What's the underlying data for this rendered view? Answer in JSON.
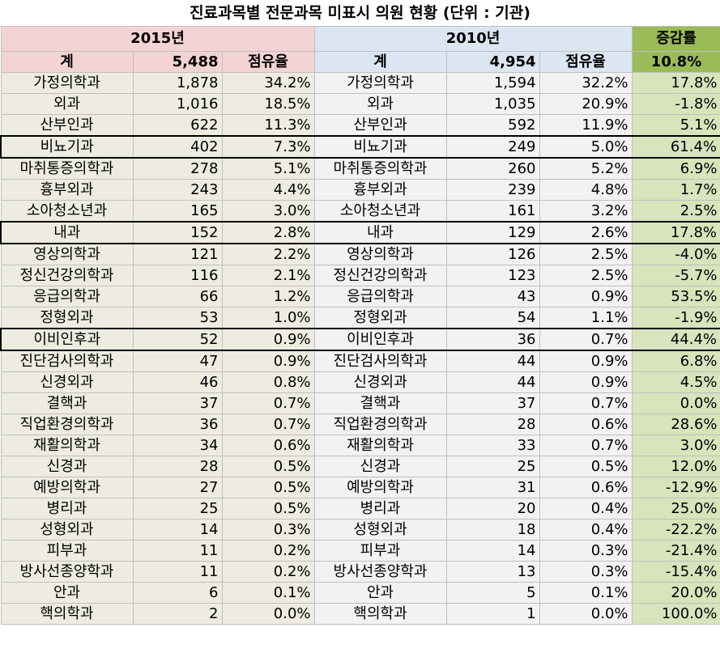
{
  "title": "진료과목별 전문과목 미표시 의원 현황 (단위 : 기관)",
  "header": {
    "year_2015": "2015년",
    "year_2010": "2010년",
    "change_label": "증감률",
    "total_label": "계",
    "share_label": "점유율",
    "total_2015": "5,488",
    "total_2010": "4,954",
    "total_change": "10.8%"
  },
  "colors": {
    "pink_header": "#f4d3d4",
    "blue_header": "#dce6f2",
    "green_header": "#9bbb59",
    "beige_body": "#eeece1",
    "gray_body": "#f2f2f2",
    "green_body": "#d7e4bc"
  },
  "rows": [
    {
      "name_2015": "가정의학과",
      "count_2015": "1,878",
      "share_2015": "34.2%",
      "name_2010": "가정의학과",
      "count_2010": "1,594",
      "share_2010": "32.2%",
      "change": "17.8%",
      "highlight": false
    },
    {
      "name_2015": "외과",
      "count_2015": "1,016",
      "share_2015": "18.5%",
      "name_2010": "외과",
      "count_2010": "1,035",
      "share_2010": "20.9%",
      "change": "-1.8%",
      "highlight": false
    },
    {
      "name_2015": "산부인과",
      "count_2015": "622",
      "share_2015": "11.3%",
      "name_2010": "산부인과",
      "count_2010": "592",
      "share_2010": "11.9%",
      "change": "5.1%",
      "highlight": false
    },
    {
      "name_2015": "비뇨기과",
      "count_2015": "402",
      "share_2015": "7.3%",
      "name_2010": "비뇨기과",
      "count_2010": "249",
      "share_2010": "5.0%",
      "change": "61.4%",
      "highlight": true
    },
    {
      "name_2015": "마취통증의학과",
      "count_2015": "278",
      "share_2015": "5.1%",
      "name_2010": "마취통증의학과",
      "count_2010": "260",
      "share_2010": "5.2%",
      "change": "6.9%",
      "highlight": false
    },
    {
      "name_2015": "흉부외과",
      "count_2015": "243",
      "share_2015": "4.4%",
      "name_2010": "흉부외과",
      "count_2010": "239",
      "share_2010": "4.8%",
      "change": "1.7%",
      "highlight": false
    },
    {
      "name_2015": "소아청소년과",
      "count_2015": "165",
      "share_2015": "3.0%",
      "name_2010": "소아청소년과",
      "count_2010": "161",
      "share_2010": "3.2%",
      "change": "2.5%",
      "highlight": false
    },
    {
      "name_2015": "내과",
      "count_2015": "152",
      "share_2015": "2.8%",
      "name_2010": "내과",
      "count_2010": "129",
      "share_2010": "2.6%",
      "change": "17.8%",
      "highlight": true
    },
    {
      "name_2015": "영상의학과",
      "count_2015": "121",
      "share_2015": "2.2%",
      "name_2010": "영상의학과",
      "count_2010": "126",
      "share_2010": "2.5%",
      "change": "-4.0%",
      "highlight": false
    },
    {
      "name_2015": "정신건강의학과",
      "count_2015": "116",
      "share_2015": "2.1%",
      "name_2010": "정신건강의학과",
      "count_2010": "123",
      "share_2010": "2.5%",
      "change": "-5.7%",
      "highlight": false
    },
    {
      "name_2015": "응급의학과",
      "count_2015": "66",
      "share_2015": "1.2%",
      "name_2010": "응급의학과",
      "count_2010": "43",
      "share_2010": "0.9%",
      "change": "53.5%",
      "highlight": false
    },
    {
      "name_2015": "정형외과",
      "count_2015": "53",
      "share_2015": "1.0%",
      "name_2010": "정형외과",
      "count_2010": "54",
      "share_2010": "1.1%",
      "change": "-1.9%",
      "highlight": false
    },
    {
      "name_2015": "이비인후과",
      "count_2015": "52",
      "share_2015": "0.9%",
      "name_2010": "이비인후과",
      "count_2010": "36",
      "share_2010": "0.7%",
      "change": "44.4%",
      "highlight": true
    },
    {
      "name_2015": "진단검사의학과",
      "count_2015": "47",
      "share_2015": "0.9%",
      "name_2010": "진단검사의학과",
      "count_2010": "44",
      "share_2010": "0.9%",
      "change": "6.8%",
      "highlight": false
    },
    {
      "name_2015": "신경외과",
      "count_2015": "46",
      "share_2015": "0.8%",
      "name_2010": "신경외과",
      "count_2010": "44",
      "share_2010": "0.9%",
      "change": "4.5%",
      "highlight": false
    },
    {
      "name_2015": "결핵과",
      "count_2015": "37",
      "share_2015": "0.7%",
      "name_2010": "결핵과",
      "count_2010": "37",
      "share_2010": "0.7%",
      "change": "0.0%",
      "highlight": false
    },
    {
      "name_2015": "직업환경의학과",
      "count_2015": "36",
      "share_2015": "0.7%",
      "name_2010": "직업환경의학과",
      "count_2010": "28",
      "share_2010": "0.6%",
      "change": "28.6%",
      "highlight": false
    },
    {
      "name_2015": "재활의학과",
      "count_2015": "34",
      "share_2015": "0.6%",
      "name_2010": "재활의학과",
      "count_2010": "33",
      "share_2010": "0.7%",
      "change": "3.0%",
      "highlight": false
    },
    {
      "name_2015": "신경과",
      "count_2015": "28",
      "share_2015": "0.5%",
      "name_2010": "신경과",
      "count_2010": "25",
      "share_2010": "0.5%",
      "change": "12.0%",
      "highlight": false
    },
    {
      "name_2015": "예방의학과",
      "count_2015": "27",
      "share_2015": "0.5%",
      "name_2010": "예방의학과",
      "count_2010": "31",
      "share_2010": "0.6%",
      "change": "-12.9%",
      "highlight": false
    },
    {
      "name_2015": "병리과",
      "count_2015": "25",
      "share_2015": "0.5%",
      "name_2010": "병리과",
      "count_2010": "20",
      "share_2010": "0.4%",
      "change": "25.0%",
      "highlight": false
    },
    {
      "name_2015": "성형외과",
      "count_2015": "14",
      "share_2015": "0.3%",
      "name_2010": "성형외과",
      "count_2010": "18",
      "share_2010": "0.4%",
      "change": "-22.2%",
      "highlight": false
    },
    {
      "name_2015": "피부과",
      "count_2015": "11",
      "share_2015": "0.2%",
      "name_2010": "피부과",
      "count_2010": "14",
      "share_2010": "0.3%",
      "change": "-21.4%",
      "highlight": false
    },
    {
      "name_2015": "방사선종양학과",
      "count_2015": "11",
      "share_2015": "0.2%",
      "name_2010": "방사선종양학과",
      "count_2010": "13",
      "share_2010": "0.3%",
      "change": "-15.4%",
      "highlight": false
    },
    {
      "name_2015": "안과",
      "count_2015": "6",
      "share_2015": "0.1%",
      "name_2010": "안과",
      "count_2010": "5",
      "share_2010": "0.1%",
      "change": "20.0%",
      "highlight": false
    },
    {
      "name_2015": "핵의학과",
      "count_2015": "2",
      "share_2015": "0.0%",
      "name_2010": "핵의학과",
      "count_2010": "1",
      "share_2010": "0.0%",
      "change": "100.0%",
      "highlight": false
    }
  ]
}
